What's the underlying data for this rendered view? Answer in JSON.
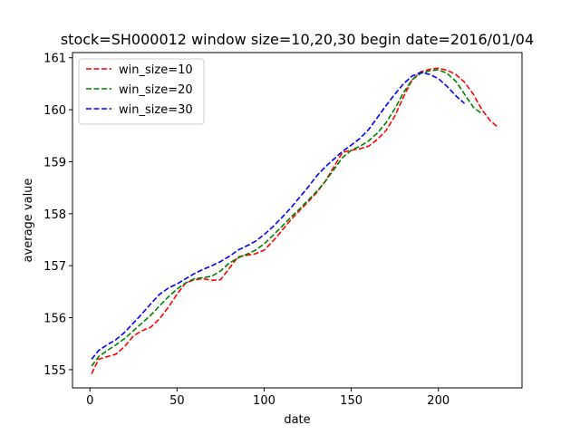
{
  "chart_data": {
    "type": "line",
    "title": "stock=SH000012 window size=10,20,30 begin date=2016/01/04",
    "xlabel": "date",
    "ylabel": "average value",
    "xlim": [
      -10,
      248
    ],
    "ylim": [
      154.65,
      161.1
    ],
    "xticks": [
      0,
      50,
      100,
      150,
      200
    ],
    "yticks": [
      155,
      156,
      157,
      158,
      159,
      160,
      161
    ],
    "legend": "top-left",
    "grid": false,
    "series": [
      {
        "name": "win_size=10",
        "color": "#ff0000",
        "x": [
          1,
          5,
          10,
          15,
          20,
          25,
          30,
          35,
          40,
          45,
          50,
          55,
          60,
          65,
          70,
          75,
          80,
          85,
          90,
          95,
          100,
          105,
          110,
          115,
          120,
          125,
          130,
          135,
          140,
          145,
          150,
          155,
          160,
          165,
          170,
          175,
          180,
          185,
          190,
          195,
          200,
          205,
          210,
          215,
          220,
          225,
          230,
          234
        ],
        "y": [
          154.92,
          155.2,
          155.25,
          155.3,
          155.45,
          155.65,
          155.75,
          155.82,
          155.98,
          156.2,
          156.45,
          156.67,
          156.73,
          156.75,
          156.72,
          156.73,
          156.95,
          157.17,
          157.2,
          157.23,
          157.3,
          157.47,
          157.67,
          157.87,
          158.05,
          158.22,
          158.4,
          158.62,
          158.9,
          159.18,
          159.22,
          159.25,
          159.3,
          159.43,
          159.6,
          159.88,
          160.25,
          160.58,
          160.73,
          160.78,
          160.8,
          160.76,
          160.68,
          160.53,
          160.3,
          160.0,
          159.78,
          159.67
        ]
      },
      {
        "name": "win_size=20",
        "color": "#008000",
        "x": [
          1,
          5,
          10,
          15,
          20,
          25,
          30,
          35,
          40,
          45,
          50,
          55,
          60,
          65,
          70,
          75,
          80,
          85,
          90,
          95,
          100,
          105,
          110,
          115,
          120,
          125,
          130,
          135,
          140,
          145,
          150,
          155,
          160,
          165,
          170,
          175,
          180,
          185,
          190,
          195,
          200,
          205,
          210,
          215,
          220,
          225
        ],
        "y": [
          155.07,
          155.25,
          155.37,
          155.48,
          155.6,
          155.75,
          155.9,
          156.05,
          156.23,
          156.4,
          156.55,
          156.67,
          156.75,
          156.77,
          156.8,
          156.9,
          157.05,
          157.15,
          157.22,
          157.3,
          157.42,
          157.58,
          157.75,
          157.92,
          158.08,
          158.25,
          158.42,
          158.62,
          158.85,
          159.08,
          159.22,
          159.3,
          159.4,
          159.55,
          159.75,
          160.02,
          160.33,
          160.58,
          160.7,
          160.75,
          160.77,
          160.7,
          160.55,
          160.3,
          160.05,
          159.92
        ]
      },
      {
        "name": "win_size=30",
        "color": "#0000ff",
        "x": [
          1,
          5,
          10,
          15,
          20,
          25,
          30,
          35,
          40,
          45,
          50,
          55,
          60,
          65,
          70,
          75,
          80,
          85,
          90,
          95,
          100,
          105,
          110,
          115,
          120,
          125,
          130,
          135,
          140,
          145,
          150,
          155,
          160,
          165,
          170,
          175,
          180,
          185,
          190,
          195,
          200,
          205,
          210,
          215
        ],
        "y": [
          155.2,
          155.37,
          155.48,
          155.58,
          155.72,
          155.9,
          156.08,
          156.27,
          156.45,
          156.57,
          156.65,
          156.75,
          156.85,
          156.93,
          157.0,
          157.08,
          157.18,
          157.3,
          157.38,
          157.47,
          157.6,
          157.75,
          157.92,
          158.1,
          158.3,
          158.5,
          158.72,
          158.9,
          159.05,
          159.2,
          159.32,
          159.45,
          159.62,
          159.85,
          160.08,
          160.3,
          160.5,
          160.65,
          160.72,
          160.68,
          160.6,
          160.45,
          160.27,
          160.12
        ]
      }
    ]
  }
}
